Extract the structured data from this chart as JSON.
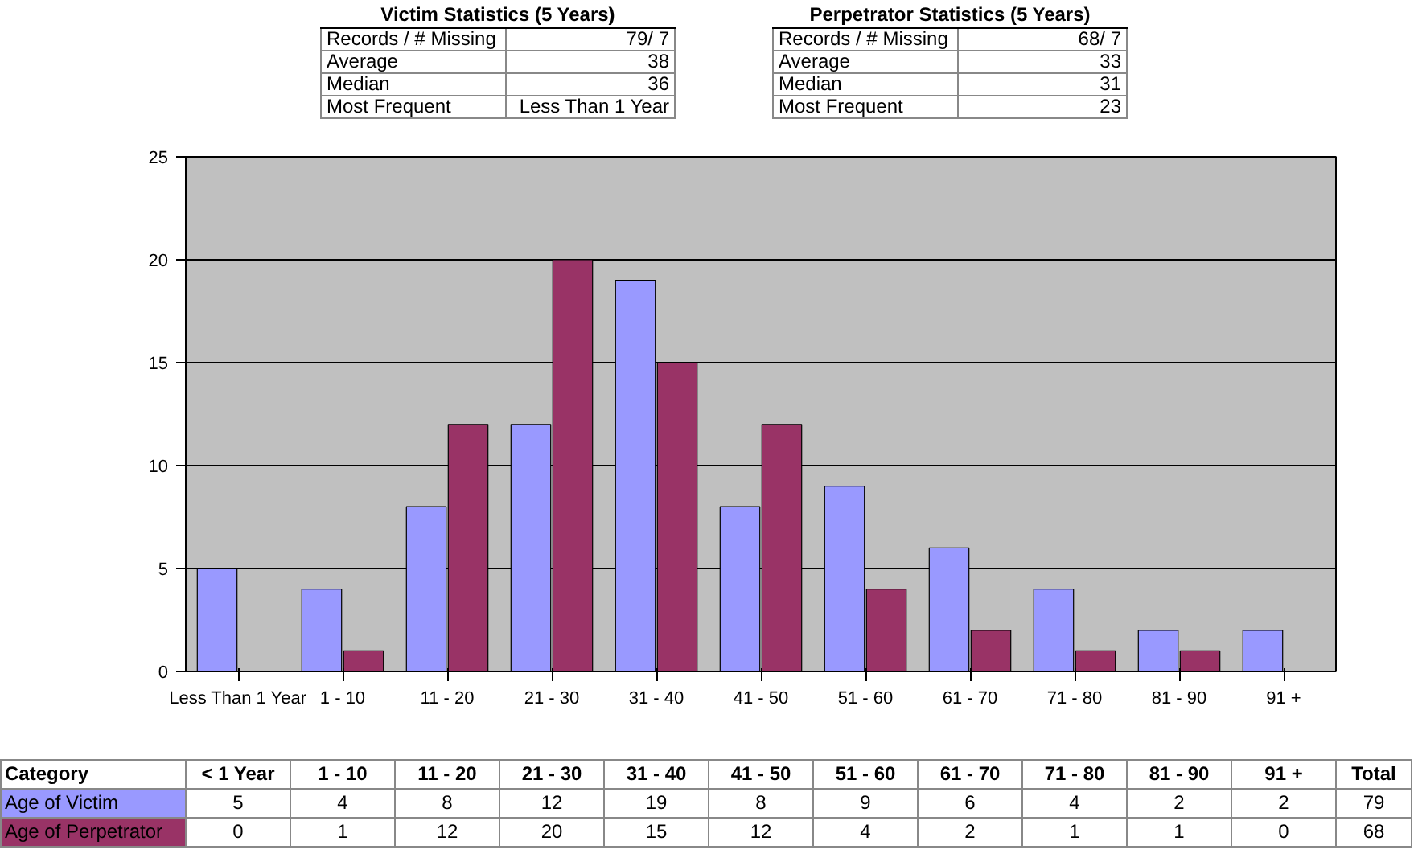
{
  "chart_data": {
    "type": "bar",
    "categories": [
      "Less Than 1 Year",
      "1 - 10",
      "11 - 20",
      "21 - 30",
      "31 - 40",
      "41 - 50",
      "51 - 60",
      "61 - 70",
      "71 - 80",
      "81 - 90",
      "91 +"
    ],
    "series": [
      {
        "name": "Age of Victim",
        "color": "#9999ff",
        "values": [
          5,
          4,
          8,
          12,
          19,
          8,
          9,
          6,
          4,
          2,
          2
        ]
      },
      {
        "name": "Age of Perpetrator",
        "color": "#993366",
        "values": [
          0,
          1,
          12,
          20,
          15,
          12,
          4,
          2,
          1,
          1,
          0
        ]
      }
    ],
    "ylim": [
      0,
      25
    ],
    "yticks": [
      0,
      5,
      10,
      15,
      20,
      25
    ],
    "grid": "y",
    "data_labels": true,
    "annotations": [
      "Victim Statistics (5 Years)",
      "Records / # Missing",
      "79/ 7",
      "Average",
      "38",
      "Median",
      "36",
      "Most Frequent",
      "Less Than 1 Year",
      "Perpetrator Statistics (5 Years)",
      "Records / # Missing",
      "68/ 7",
      "Average",
      "33",
      "Median",
      "31",
      "Most Frequent",
      "23",
      "Category",
      "< 1 Year",
      "1 - 10",
      "11 - 20",
      "21 - 30",
      "31 - 40",
      "41 - 50",
      "51 - 60",
      "61 - 70",
      "71 - 80",
      "81 - 90",
      "91 +",
      "Total",
      "79",
      "68"
    ]
  }
}
